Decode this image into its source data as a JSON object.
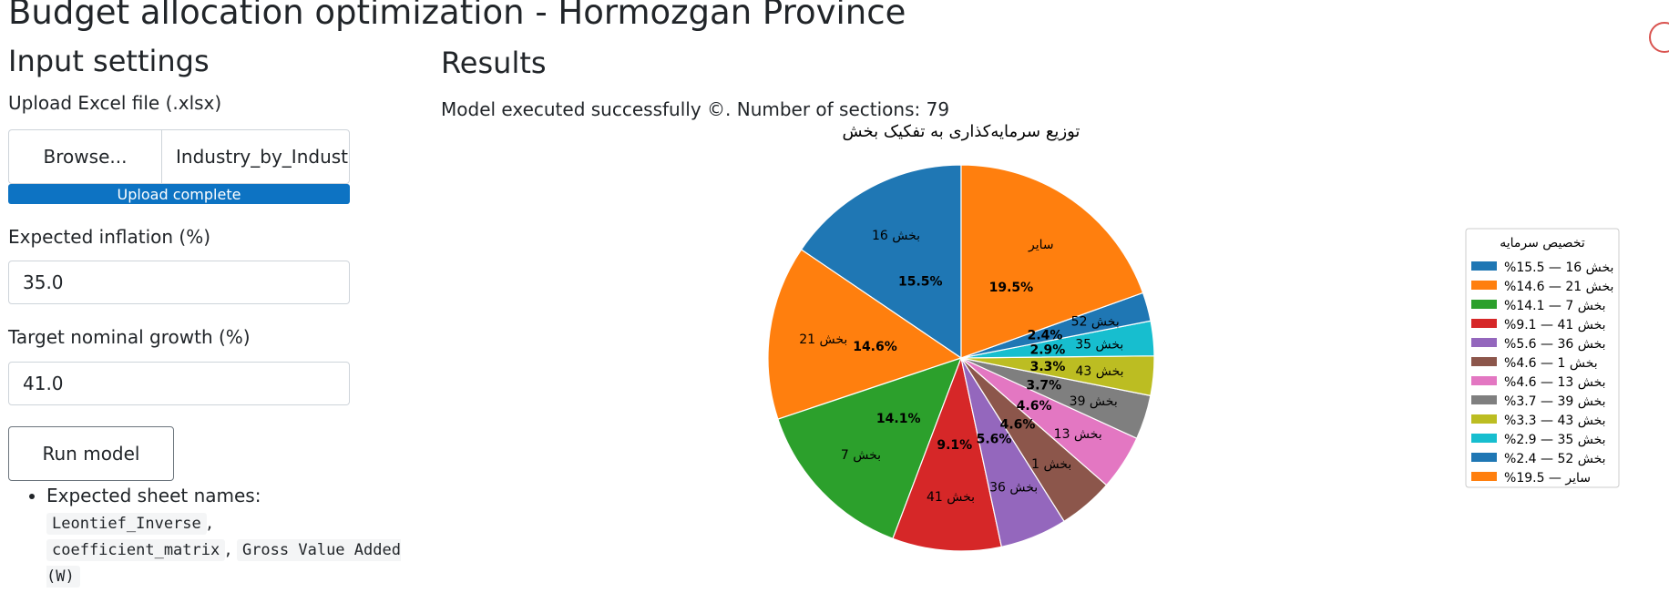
{
  "app": {
    "title": "Budget allocation optimization - Hormozgan Province"
  },
  "input_panel": {
    "title": "Input settings",
    "upload_label": "Upload Excel file (.xlsx)",
    "browse_label": "Browse...",
    "file_name": "Industry_by_Indust",
    "progress_text": "Upload complete",
    "progress_fraction": 1.0,
    "inflation_label": "Expected inflation (%)",
    "inflation_value": "35.0",
    "growth_label": "Target nominal growth (%)",
    "growth_value": "41.0",
    "run_label": "Run model",
    "notes_label": "Expected sheet names:",
    "sheet_names": [
      "Leontief_Inverse",
      "coefficient_matrix",
      "Gross Value Added (W)"
    ],
    "sheet_separator": ","
  },
  "results_panel": {
    "title": "Results",
    "status_text": "Model executed successfully ©. Number of sections: 79"
  },
  "chart_data": {
    "type": "pie",
    "title": "توزیع سرمایه‌کذاری به تفکیک بخش",
    "legend_title": "تخصیص سرمایه",
    "legend_position": "right",
    "slices": [
      {
        "label": "بخش 16",
        "value": 15.5,
        "legend": "بخش 16 — 15.5%",
        "pct_label": "15.5%",
        "color": "#1f77b4"
      },
      {
        "label": "بخش 21",
        "value": 14.6,
        "legend": "بخش 21 — 14.6%",
        "pct_label": "14.6%",
        "color": "#ff7f0e"
      },
      {
        "label": "بخش 7",
        "value": 14.1,
        "legend": "بخش 7 — 14.1%",
        "pct_label": "14.1%",
        "color": "#2ca02c"
      },
      {
        "label": "بخش 41",
        "value": 9.1,
        "legend": "بخش 41 — 9.1%",
        "pct_label": "9.1%",
        "color": "#d62728"
      },
      {
        "label": "بخش 36",
        "value": 5.6,
        "legend": "بخش 36 — 5.6%",
        "pct_label": "5.6%",
        "color": "#9467bd"
      },
      {
        "label": "بخش 1",
        "value": 4.6,
        "legend": "بخش 1 — 4.6%",
        "pct_label": "4.6%",
        "color": "#8c564b"
      },
      {
        "label": "بخش 13",
        "value": 4.6,
        "legend": "بخش 13 — 4.6%",
        "pct_label": "4.6%",
        "color": "#e377c2"
      },
      {
        "label": "بخش 39",
        "value": 3.7,
        "legend": "بخش 39 — 3.7%",
        "pct_label": "3.7%",
        "color": "#7f7f7f"
      },
      {
        "label": "بخش 43",
        "value": 3.3,
        "legend": "بخش 43 — 3.3%",
        "pct_label": "3.3%",
        "color": "#bcbd22"
      },
      {
        "label": "بخش 35",
        "value": 2.9,
        "legend": "بخش 35 — 2.9%",
        "pct_label": "2.9%",
        "color": "#17becf"
      },
      {
        "label": "بخش 52",
        "value": 2.4,
        "legend": "بخش 52 — 2.4%",
        "pct_label": "2.4%",
        "color": "#1f77b4"
      },
      {
        "label": "سایر",
        "value": 19.5,
        "legend": "سایر — 19.5%",
        "pct_label": "19.5%",
        "color": "#ff7f0e"
      }
    ]
  }
}
